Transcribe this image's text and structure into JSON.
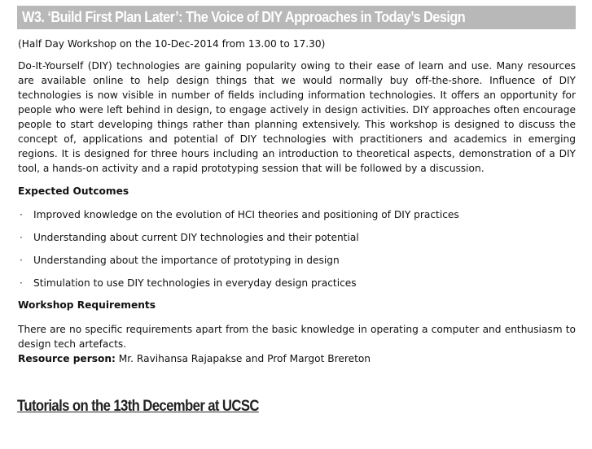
{
  "banner": {
    "title": "W3.  ‘Build First Plan Later’: The Voice of DIY Approaches in Today’s Design"
  },
  "subtitle": "(Half Day Workshop on the 10-Dec-2014 from 13.00 to 17.30)",
  "intro": "Do-It-Yourself (DIY) technologies are gaining popularity owing to their ease of learn and use. Many resources are available online to help design things that we would normally buy off-the-shore. Influence of DIY technologies is now visible in number of fields including information technologies. It offers an opportunity for people who were left behind in design, to engage actively in design activities. DIY approaches often encourage people to start developing things rather than planning extensively. This workshop is designed to discuss the concept of, applications and potential of DIY technologies with practitioners and academics in emerging regions. It is designed for three hours including an introduction to theoretical aspects, demonstration of a DIY tool, a hands-on activity and a rapid prototyping session that will be followed by a discussion.",
  "outcomes": {
    "heading": "Expected Outcomes",
    "bullet": "·",
    "items": [
      "Improved knowledge on the evolution of HCI theories and positioning of DIY practices",
      "Understanding about current DIY technologies and their potential",
      "Understanding about the importance of prototyping in design",
      "Stimulation to use DIY technologies in everyday design practices"
    ]
  },
  "requirements": {
    "heading": "Workshop Requirements",
    "text": "There are no specific requirements apart from the basic knowledge in operating a computer and enthusiasm to design tech artefacts."
  },
  "resource": {
    "label": "Resource person:",
    "value": " Mr. Ravihansa Rajapakse and Prof Margot Brereton"
  },
  "tutorials_heading": "Tutorials on the 13th December at UCSC"
}
